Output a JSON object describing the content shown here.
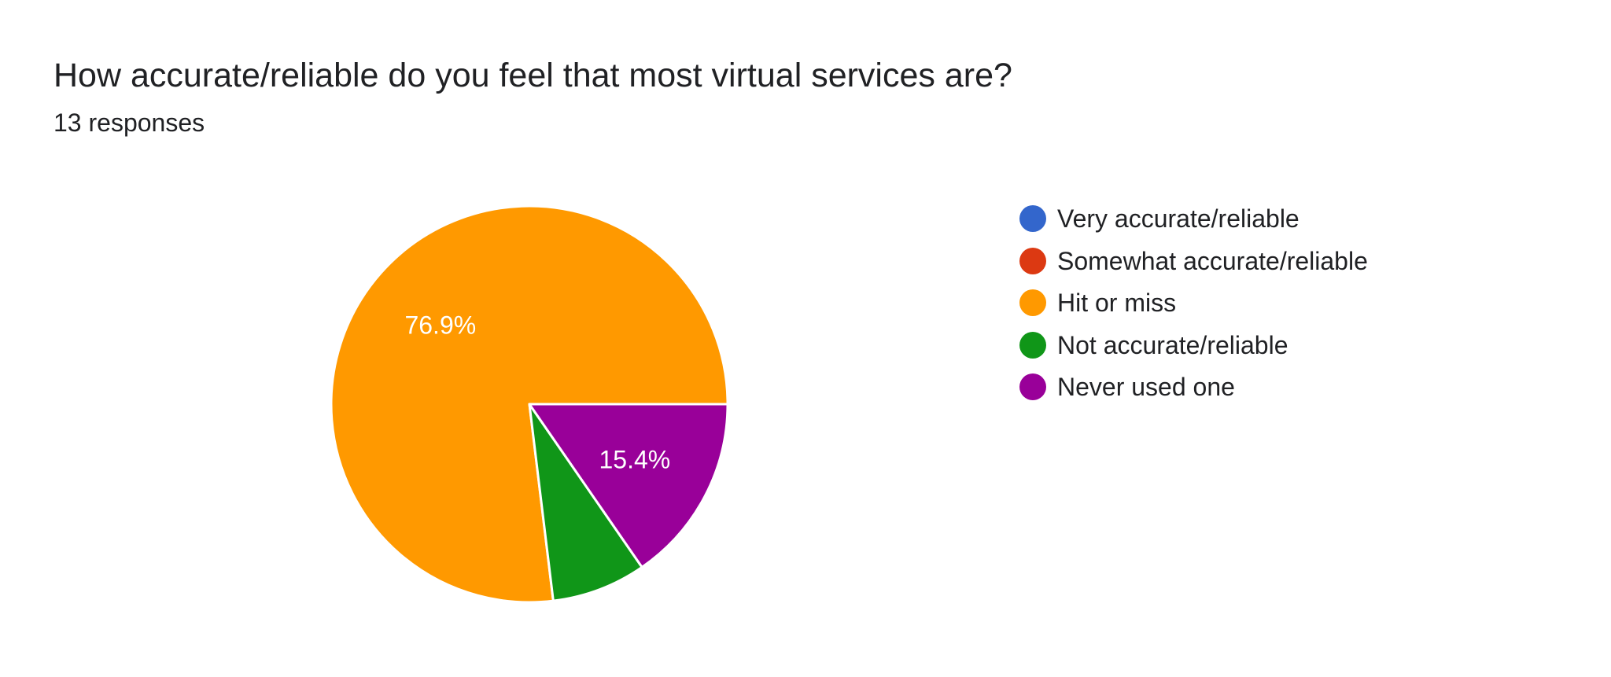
{
  "header": {
    "title": "How accurate/reliable do you feel that most virtual services are?",
    "responses": "13 responses"
  },
  "chart_data": {
    "type": "pie",
    "title": "How accurate/reliable do you feel that most virtual services are?",
    "legend_placement": "right",
    "total_responses": 13,
    "slices": [
      {
        "label": "Very accurate/reliable",
        "value": 0,
        "percent": 0,
        "color": "#3366cc",
        "percent_label": ""
      },
      {
        "label": "Somewhat accurate/reliable",
        "value": 0,
        "percent": 0,
        "color": "#dc3912",
        "percent_label": ""
      },
      {
        "label": "Hit or miss",
        "value": 10,
        "percent": 76.9,
        "color": "#ff9900",
        "percent_label": "76.9%"
      },
      {
        "label": "Not accurate/reliable",
        "value": 1,
        "percent": 7.7,
        "color": "#109618",
        "percent_label": ""
      },
      {
        "label": "Never used one",
        "value": 2,
        "percent": 15.4,
        "color": "#990099",
        "percent_label": "15.4%"
      }
    ]
  }
}
